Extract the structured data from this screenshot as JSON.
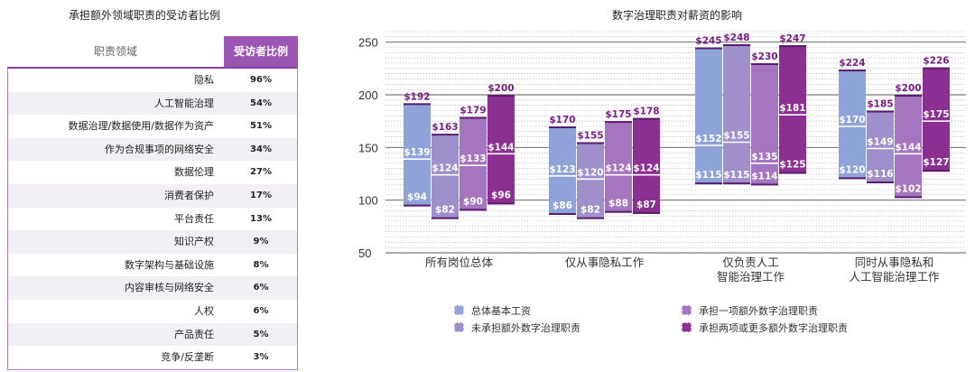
{
  "left_title": "承担额外领域职责的受访者比例",
  "table": {
    "header_domain": "职责领域",
    "header_pct": "受访者比例",
    "rows": [
      {
        "domain": "隐私",
        "pct": "96%"
      },
      {
        "domain": "人工智能治理",
        "pct": "54%"
      },
      {
        "domain": "数据治理/数据使用/数据作为资产",
        "pct": "51%"
      },
      {
        "domain": "作为合规事项的网络安全",
        "pct": "34%"
      },
      {
        "domain": "数据伦理",
        "pct": "27%"
      },
      {
        "domain": "消费者保护",
        "pct": "17%"
      },
      {
        "domain": "平台责任",
        "pct": "13%"
      },
      {
        "domain": "知识产权",
        "pct": "9%"
      },
      {
        "domain": "数字架构与基础设施",
        "pct": "8%"
      },
      {
        "domain": "内容审核与网络安全",
        "pct": "6%"
      },
      {
        "domain": "人权",
        "pct": "6%"
      },
      {
        "domain": "产品责任",
        "pct": "5%"
      },
      {
        "domain": "竞争/反垄断",
        "pct": "3%"
      }
    ]
  },
  "chart_data": {
    "type": "bar",
    "title": "数字治理职责对薪资的影响",
    "ylim": [
      50,
      260
    ],
    "yticks": [
      50,
      100,
      150,
      200,
      250
    ],
    "categories": [
      [
        "所有岗位总体"
      ],
      [
        "仅从事隐私工作"
      ],
      [
        "仅负责人工",
        "智能治理工作"
      ],
      [
        "同时从事隐私和",
        "人工智能治理工作"
      ]
    ],
    "series": [
      {
        "name": "总体基本工资",
        "color": "#8ea3d8",
        "low": [
          94,
          86,
          115,
          120
        ],
        "median": [
          139,
          123,
          152,
          170
        ],
        "high": [
          192,
          170,
          245,
          224
        ],
        "low_label": [
          "$94",
          "$86",
          "$115",
          "$120"
        ],
        "median_label": [
          "$139",
          "$123",
          "$152",
          "$170"
        ],
        "high_label": [
          "$192",
          "$170",
          "$245",
          "$224"
        ]
      },
      {
        "name": "未承担额外数字治理职责",
        "color": "#9f8fcb",
        "low": [
          82,
          82,
          115,
          116
        ],
        "median": [
          124,
          120,
          155,
          149
        ],
        "high": [
          163,
          155,
          248,
          185
        ],
        "low_label": [
          "$82",
          "$82",
          "$115",
          "$116"
        ],
        "median_label": [
          "$124",
          "$120",
          "$155",
          "$149"
        ],
        "high_label": [
          "$163",
          "$155",
          "$248",
          "$185"
        ]
      },
      {
        "name": "承担一项额外数字治理职责",
        "color": "#a675bf",
        "low": [
          90,
          88,
          114,
          102
        ],
        "median": [
          133,
          124,
          135,
          144
        ],
        "high": [
          179,
          175,
          230,
          200
        ],
        "low_label": [
          "$90",
          "$88",
          "$114",
          "$102"
        ],
        "median_label": [
          "$133",
          "$124",
          "$135",
          "$144"
        ],
        "high_label": [
          "$179",
          "$175",
          "$230",
          "$200"
        ]
      },
      {
        "name": "承担两项或更多额外数字治理职责",
        "color": "#8b2f92",
        "low": [
          96,
          87,
          125,
          127
        ],
        "median": [
          144,
          124,
          181,
          175
        ],
        "high": [
          200,
          178,
          247,
          226
        ],
        "low_label": [
          "$96",
          "$87",
          "$125",
          "$127"
        ],
        "median_label": [
          "$144",
          "$124",
          "$181",
          "$175"
        ],
        "high_label": [
          "$200",
          "$178",
          "$247",
          "$226"
        ]
      }
    ],
    "grid": "dotted",
    "legend_position": "bottom"
  }
}
